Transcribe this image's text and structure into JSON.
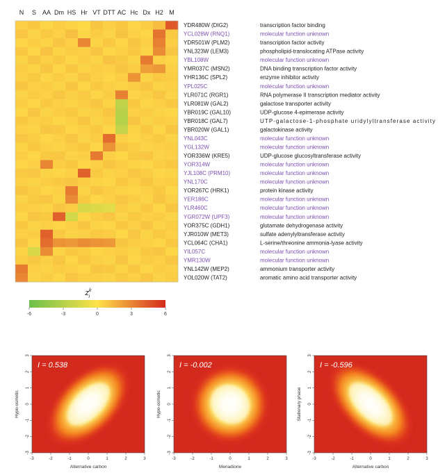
{
  "chart_data": [
    {
      "type": "heatmap",
      "columns": [
        "N",
        "S",
        "AA",
        "Dm",
        "HS",
        "Hr",
        "VT",
        "DTT",
        "AC",
        "Hc",
        "Dx",
        "H2",
        "M"
      ],
      "rows": [
        {
          "gene": "YDR480W (DIG2)",
          "func": "transcription factor binding",
          "unknown": false
        },
        {
          "gene": "YCL028W (RNQ1)",
          "func": "molecular function unknown",
          "unknown": true
        },
        {
          "gene": "YDR501W (PLM2)",
          "func": "transcription factor activity",
          "unknown": false
        },
        {
          "gene": "YNL323W (LEM3)",
          "func": "phospholipid-translocating ATPase activity",
          "unknown": false
        },
        {
          "gene": "YBL108W",
          "func": "molecular function unknown",
          "unknown": true
        },
        {
          "gene": "YMR037C (MSN2)",
          "func": "DNA binding transcription factor activity",
          "unknown": false
        },
        {
          "gene": "YHR136C (SPL2)",
          "func": "enzyme inhibitor activity",
          "unknown": false
        },
        {
          "gene": "YPL025C",
          "func": "molecular function unknown",
          "unknown": true
        },
        {
          "gene": "YLR071C (RGR1)",
          "func": "RNA polymerase II transcription mediator activity",
          "unknown": false
        },
        {
          "gene": "YLR081W (GAL2)",
          "func": "galactose transporter activity",
          "unknown": false
        },
        {
          "gene": "YBR019C (GAL10)",
          "func": "UDP-glucose 4-epimerase activity",
          "unknown": false
        },
        {
          "gene": "YBR018C (GAL7)",
          "func": "UTP-galactose-1-phosphate uridylyltransferase activity",
          "unknown": false
        },
        {
          "gene": "YBR020W (GAL1)",
          "func": "galactokinase activity",
          "unknown": false
        },
        {
          "gene": "YNL043C",
          "func": "molecular function unknown",
          "unknown": true
        },
        {
          "gene": "YGL132W",
          "func": "molecular function unknown",
          "unknown": true
        },
        {
          "gene": "YOR336W (KRE5)",
          "func": "UDP-glucose glucosyltransferase activity",
          "unknown": false
        },
        {
          "gene": "YOR314W",
          "func": "molecular function unknown",
          "unknown": true
        },
        {
          "gene": "YJL108C (PRM10)",
          "func": "molecular function unknown",
          "unknown": true
        },
        {
          "gene": "YNL170C",
          "func": "molecular function unknown",
          "unknown": true
        },
        {
          "gene": "YOR267C (HRK1)",
          "func": "protein kinase activity",
          "unknown": false
        },
        {
          "gene": "YER186C",
          "func": "molecular function unknown",
          "unknown": true
        },
        {
          "gene": "YLR460C",
          "func": "molecular function unknown",
          "unknown": true
        },
        {
          "gene": "YGR072W (UPF3)",
          "func": "molecular function unknown",
          "unknown": true
        },
        {
          "gene": "YOR375C (GDH1)",
          "func": "glutamate dehydrogenase activity",
          "unknown": false
        },
        {
          "gene": "YJR010W (MET3)",
          "func": "sulfate adenylyltransferase activity",
          "unknown": false
        },
        {
          "gene": "YCL064C (CHA1)",
          "func": "L-serine/threonine ammonia-lyase activity",
          "unknown": false
        },
        {
          "gene": "YIL057C",
          "func": "molecular function unknown",
          "unknown": true
        },
        {
          "gene": "YMR130W",
          "func": "molecular function unknown",
          "unknown": true
        },
        {
          "gene": "YNL142W (MEP2)",
          "func": "ammonium transporter activity",
          "unknown": false
        },
        {
          "gene": "YOL020W (TAT2)",
          "func": "aromatic amino acid transporter activity",
          "unknown": false
        }
      ],
      "values": [
        [
          0.6,
          0.8,
          0.4,
          0.7,
          0.5,
          0.3,
          0.9,
          0.6,
          0.8,
          0.4,
          0.7,
          1.2,
          4.5
        ],
        [
          0.9,
          0.5,
          0.8,
          0.6,
          1.1,
          0.4,
          0.7,
          0.5,
          1.0,
          0.6,
          0.4,
          3.6,
          0.8
        ],
        [
          0.4,
          0.7,
          0.5,
          0.9,
          0.6,
          3.0,
          0.5,
          0.8,
          0.4,
          0.9,
          0.6,
          3.2,
          0.7
        ],
        [
          0.8,
          0.4,
          1.0,
          0.5,
          0.7,
          0.6,
          0.9,
          0.4,
          0.6,
          0.8,
          0.5,
          2.8,
          0.9
        ],
        [
          0.5,
          0.9,
          0.6,
          0.8,
          0.4,
          0.7,
          0.5,
          1.0,
          0.8,
          0.5,
          3.4,
          0.6,
          0.4
        ],
        [
          0.7,
          0.5,
          0.9,
          0.4,
          0.8,
          0.5,
          0.7,
          0.6,
          0.9,
          0.7,
          2.2,
          2.4,
          0.6
        ],
        [
          0.6,
          0.8,
          0.4,
          0.7,
          0.5,
          0.9,
          0.6,
          0.4,
          0.7,
          2.6,
          0.5,
          0.8,
          0.7
        ],
        [
          0.9,
          0.6,
          0.7,
          0.5,
          0.9,
          0.4,
          0.8,
          0.6,
          0.5,
          0.7,
          0.9,
          0.5,
          0.6
        ],
        [
          0.5,
          0.7,
          0.6,
          0.9,
          0.6,
          0.8,
          0.4,
          0.7,
          3.2,
          0.5,
          0.6,
          0.9,
          0.5
        ],
        [
          0.7,
          0.4,
          0.8,
          0.6,
          0.5,
          0.7,
          0.9,
          0.5,
          -2.6,
          0.8,
          0.4,
          0.6,
          0.8
        ],
        [
          0.4,
          0.9,
          0.5,
          0.7,
          0.8,
          0.5,
          0.6,
          0.9,
          -2.8,
          0.6,
          0.7,
          0.5,
          0.4
        ],
        [
          0.8,
          0.6,
          0.7,
          0.4,
          0.6,
          0.9,
          0.5,
          0.7,
          -3.0,
          0.9,
          0.5,
          0.7,
          0.6
        ],
        [
          0.6,
          0.5,
          0.9,
          0.8,
          0.4,
          0.6,
          0.8,
          0.4,
          -2.4,
          0.5,
          0.8,
          0.4,
          0.9
        ],
        [
          0.9,
          0.7,
          0.4,
          0.6,
          0.9,
          0.5,
          0.7,
          3.8,
          0.6,
          0.4,
          0.6,
          0.8,
          0.5
        ],
        [
          0.5,
          0.8,
          0.6,
          0.5,
          0.7,
          0.8,
          0.4,
          2.6,
          0.9,
          0.7,
          0.5,
          0.6,
          0.7
        ],
        [
          0.7,
          0.4,
          0.8,
          0.9,
          0.5,
          0.6,
          3.4,
          0.6,
          0.4,
          0.8,
          0.9,
          0.5,
          0.6
        ],
        [
          0.4,
          0.6,
          3.0,
          0.7,
          0.8,
          0.4,
          0.6,
          0.9,
          0.7,
          0.5,
          0.4,
          0.7,
          0.8
        ],
        [
          0.8,
          0.9,
          0.5,
          0.4,
          0.6,
          4.2,
          0.8,
          0.5,
          0.6,
          0.9,
          0.7,
          0.4,
          0.5
        ],
        [
          0.6,
          0.5,
          0.7,
          0.8,
          0.9,
          0.7,
          0.5,
          0.4,
          0.8,
          0.6,
          0.9,
          0.6,
          0.7
        ],
        [
          0.9,
          0.7,
          0.4,
          0.6,
          3.4,
          0.5,
          0.9,
          0.7,
          0.5,
          0.4,
          0.6,
          0.8,
          0.4
        ],
        [
          0.5,
          0.8,
          0.9,
          0.5,
          2.8,
          0.8,
          0.4,
          0.6,
          0.9,
          0.7,
          0.5,
          0.9,
          0.6
        ],
        [
          0.7,
          0.6,
          0.5,
          0.9,
          0.7,
          -1.6,
          -1.4,
          -1.2,
          0.7,
          0.5,
          0.8,
          0.4,
          0.9
        ],
        [
          0.4,
          0.9,
          0.8,
          4.2,
          -1.8,
          0.4,
          0.7,
          0.9,
          0.5,
          0.8,
          0.6,
          0.7,
          0.5
        ],
        [
          0.8,
          0.5,
          0.6,
          0.4,
          0.6,
          0.9,
          0.5,
          0.4,
          0.8,
          0.6,
          0.9,
          0.5,
          0.7
        ],
        [
          0.6,
          0.7,
          4.2,
          0.8,
          0.5,
          0.6,
          0.8,
          0.7,
          0.4,
          0.9,
          0.5,
          0.8,
          0.6
        ],
        [
          0.9,
          0.4,
          3.8,
          2.6,
          2.4,
          2.8,
          2.6,
          2.4,
          0.9,
          0.7,
          0.6,
          0.4,
          0.8
        ],
        [
          0.5,
          -1.6,
          2.8,
          0.5,
          0.8,
          0.7,
          0.4,
          0.6,
          0.7,
          0.5,
          0.8,
          0.9,
          0.4
        ],
        [
          0.7,
          0.8,
          0.6,
          0.9,
          0.4,
          0.8,
          0.6,
          0.5,
          0.9,
          0.4,
          0.7,
          0.6,
          0.9
        ],
        [
          3.4,
          0.6,
          0.5,
          0.7,
          0.6,
          0.4,
          0.9,
          0.8,
          0.5,
          0.8,
          0.4,
          0.7,
          0.6
        ],
        [
          3.0,
          0.5,
          0.7,
          0.4,
          0.9,
          0.7,
          0.6,
          0.5,
          0.8,
          0.6,
          0.9,
          0.5,
          0.7
        ]
      ],
      "colorbar": {
        "label": "z",
        "label_sup": "k",
        "label_sub": "i",
        "range": [
          -6,
          6
        ],
        "ticks": [
          "-6",
          "-3",
          "0",
          "3",
          "6"
        ],
        "colors": [
          "#6cc04a",
          "#ffe24a",
          "#d32a1e"
        ]
      },
      "unknown_color": "#7b4fb0"
    },
    {
      "type": "scatter",
      "subtype": "density",
      "annotation": "I = 0.538",
      "xlabel": "Alternative carbon",
      "ylabel": "Hypo-osmotic",
      "xlim": [
        -3,
        3
      ],
      "ylim": [
        -3,
        3
      ],
      "xticks": [
        "-3",
        "-2",
        "-1",
        "0",
        "1",
        "2",
        "3"
      ],
      "yticks": [
        "-3",
        "-2",
        "-1",
        "0",
        "1",
        "2",
        "3"
      ],
      "correlation": 0.538
    },
    {
      "type": "scatter",
      "subtype": "density",
      "annotation": "I = -0.002",
      "xlabel": "Menadione",
      "ylabel": "Hypo-osmotic",
      "xlim": [
        -3,
        3
      ],
      "ylim": [
        -3,
        3
      ],
      "xticks": [
        "-3",
        "-2",
        "-1",
        "0",
        "1",
        "2",
        "3"
      ],
      "yticks": [
        "-3",
        "-2",
        "-1",
        "0",
        "1",
        "2",
        "3"
      ],
      "correlation": -0.002
    },
    {
      "type": "scatter",
      "subtype": "density",
      "annotation": "I = -0.596",
      "xlabel": "Alternative carbon",
      "ylabel": "Stationary phase",
      "xlim": [
        -3,
        3
      ],
      "ylim": [
        -3,
        3
      ],
      "xticks": [
        "-3",
        "-2",
        "-1",
        "0",
        "1",
        "2",
        "3"
      ],
      "yticks": [
        "-3",
        "-2",
        "-1",
        "0",
        "1",
        "2",
        "3"
      ],
      "correlation": -0.596
    }
  ]
}
